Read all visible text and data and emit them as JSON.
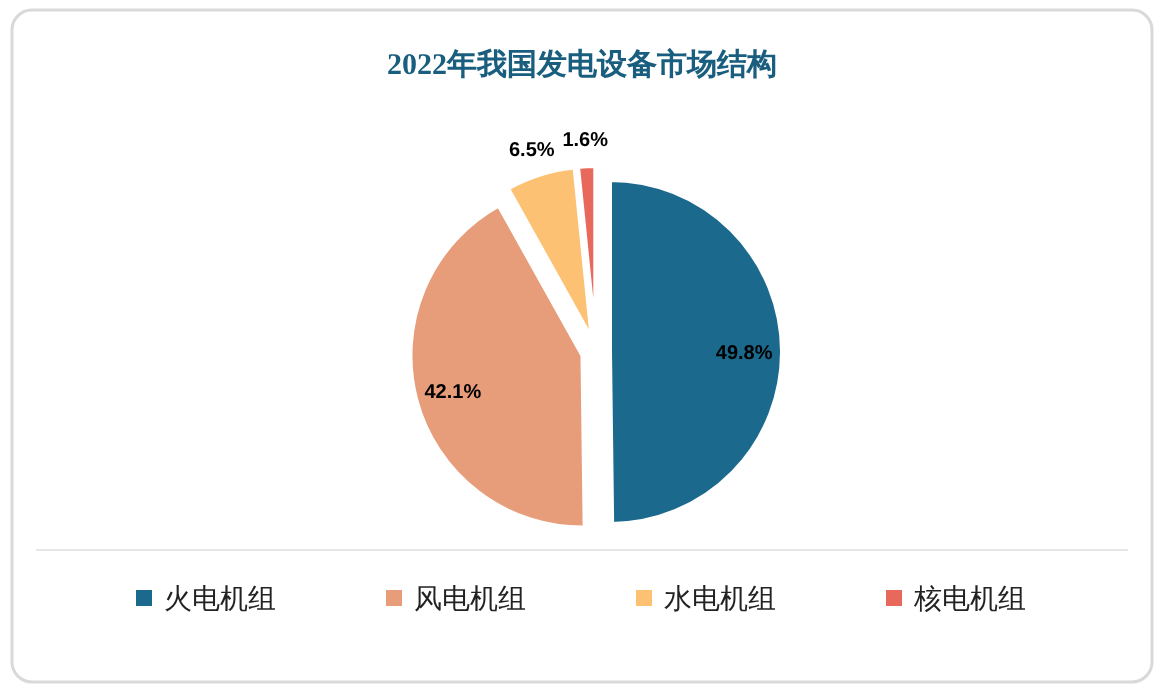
{
  "chart_data": {
    "type": "pie",
    "title": "2022年我国发电设备市场结构",
    "categories": [
      "火电机组",
      "风电机组",
      "水电机组",
      "核电机组"
    ],
    "values": [
      49.8,
      42.1,
      6.5,
      1.6
    ],
    "value_labels": [
      "49.8%",
      "42.1%",
      "6.5%",
      "1.6%"
    ],
    "colors": [
      "#1b6a8e",
      "#e79c7a",
      "#fdc173",
      "#e8695b"
    ],
    "legend": "bottom"
  }
}
